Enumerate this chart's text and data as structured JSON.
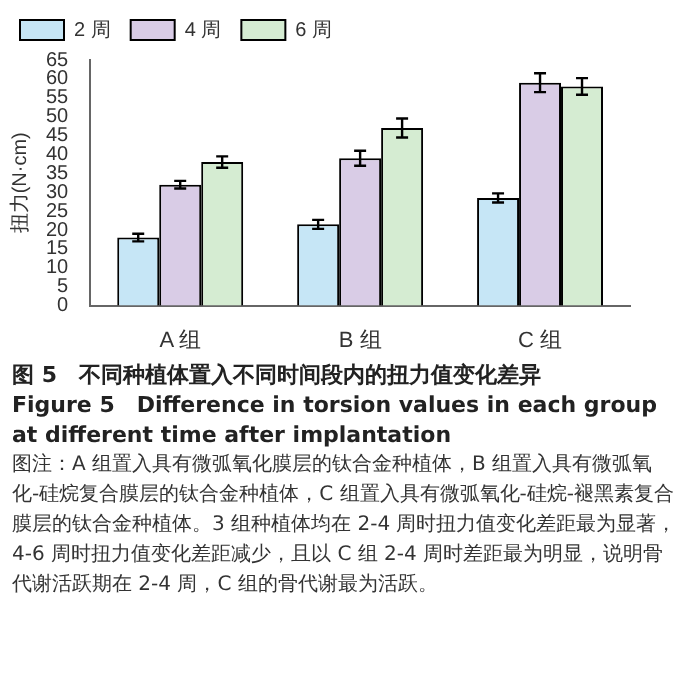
{
  "chart_data": {
    "type": "bar",
    "title": "图 5　不同种植体置入不同时间段内的扭力值变化差异",
    "subtitle": "Figure 5　Difference in torsion values in each group at different time after implantation",
    "ylabel": "扭力(N·cm)",
    "categories": [
      "A 组",
      "B 组",
      "C 组"
    ],
    "series": [
      {
        "name": "2 周",
        "color": "#c6e6f6",
        "values": [
          18,
          21.5,
          28.5
        ],
        "errors": [
          1,
          1.2,
          1.2
        ]
      },
      {
        "name": "4 周",
        "color": "#d9cce6",
        "values": [
          32,
          39,
          59
        ],
        "errors": [
          1,
          2,
          2.5
        ]
      },
      {
        "name": "6 周",
        "color": "#d5ecd2",
        "values": [
          38,
          47,
          58
        ],
        "errors": [
          1.5,
          2.5,
          2.2
        ]
      }
    ],
    "ylim": [
      0,
      65
    ],
    "yticks": [
      0,
      5,
      10,
      15,
      20,
      25,
      30,
      35,
      40,
      45,
      50,
      55,
      60,
      65
    ],
    "grid": false,
    "legend": "top left",
    "annotations": [
      "图注：A 组置入具有微弧氧化膜层的钛合金种植体，B 组置入具有微弧氧化-硅烷复合膜层的钛合金种植体，C 组置入具有微弧氧化-硅烷-褪黑素复合膜层的钛合金种植体。3 组种植体均在 2-4 周时扭力值变化差距最为显著，4-6 周时扭力值变化差距减少，且以 C 组 2-4 周时差距最为明显，说明骨代谢活跃期在 2-4 周，C 组的骨代谢最为活跃。"
    ]
  }
}
